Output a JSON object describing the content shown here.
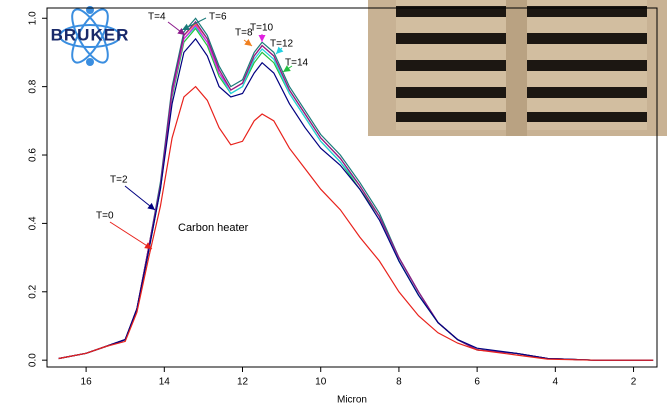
{
  "chart_data": {
    "type": "line",
    "logo": "BRUKER",
    "annotation": "Carbon heater",
    "x_label": "Micron",
    "x": [
      16.7,
      16,
      15.5,
      15,
      14.7,
      14.4,
      14.1,
      13.8,
      13.5,
      13.2,
      12.9,
      12.6,
      12.3,
      12,
      11.7,
      11.5,
      11.2,
      10.8,
      10.4,
      10,
      9.5,
      9,
      8.5,
      8,
      7.5,
      7,
      6.5,
      6,
      5,
      4.2,
      3,
      1.5
    ],
    "series": [
      {
        "name": "T=14",
        "color": "#22c040",
        "values": [
          0.005,
          0.02,
          0.04,
          0.06,
          0.15,
          0.32,
          0.5,
          0.77,
          0.93,
          0.97,
          0.92,
          0.83,
          0.78,
          0.8,
          0.87,
          0.9,
          0.87,
          0.78,
          0.71,
          0.64,
          0.58,
          0.5,
          0.42,
          0.29,
          0.19,
          0.11,
          0.06,
          0.03,
          0.02,
          0.005,
          0,
          0
        ]
      },
      {
        "name": "T=12",
        "color": "#22d0e0",
        "values": [
          0.005,
          0.02,
          0.04,
          0.06,
          0.15,
          0.32,
          0.5,
          0.78,
          0.94,
          0.975,
          0.93,
          0.84,
          0.78,
          0.8,
          0.88,
          0.91,
          0.88,
          0.78,
          0.71,
          0.64,
          0.58,
          0.51,
          0.42,
          0.29,
          0.19,
          0.11,
          0.06,
          0.03,
          0.02,
          0.005,
          0,
          0
        ]
      },
      {
        "name": "T=10",
        "color": "#e020e0",
        "values": [
          0.005,
          0.02,
          0.04,
          0.06,
          0.15,
          0.33,
          0.51,
          0.78,
          0.94,
          0.98,
          0.93,
          0.84,
          0.79,
          0.81,
          0.89,
          0.92,
          0.89,
          0.79,
          0.72,
          0.65,
          0.59,
          0.51,
          0.42,
          0.3,
          0.2,
          0.11,
          0.06,
          0.03,
          0.02,
          0.005,
          0,
          0
        ]
      },
      {
        "name": "T=8",
        "color": "#f08020",
        "values": [
          0.005,
          0.02,
          0.04,
          0.06,
          0.15,
          0.33,
          0.51,
          0.79,
          0.95,
          0.985,
          0.94,
          0.85,
          0.79,
          0.81,
          0.89,
          0.92,
          0.89,
          0.79,
          0.72,
          0.65,
          0.59,
          0.51,
          0.42,
          0.3,
          0.2,
          0.11,
          0.06,
          0.03,
          0.02,
          0.005,
          0,
          0
        ]
      },
      {
        "name": "T=6",
        "color": "#1a7a7a",
        "values": [
          0.005,
          0.02,
          0.04,
          0.06,
          0.15,
          0.33,
          0.52,
          0.8,
          0.96,
          1.0,
          0.95,
          0.86,
          0.8,
          0.82,
          0.9,
          0.93,
          0.9,
          0.8,
          0.73,
          0.66,
          0.6,
          0.52,
          0.43,
          0.3,
          0.2,
          0.11,
          0.06,
          0.03,
          0.02,
          0.005,
          0,
          0
        ]
      },
      {
        "name": "T=4",
        "color": "#8b1a8b",
        "values": [
          0.005,
          0.02,
          0.04,
          0.06,
          0.15,
          0.33,
          0.51,
          0.79,
          0.95,
          0.99,
          0.94,
          0.85,
          0.79,
          0.81,
          0.89,
          0.92,
          0.89,
          0.79,
          0.72,
          0.65,
          0.59,
          0.51,
          0.42,
          0.3,
          0.2,
          0.11,
          0.06,
          0.03,
          0.02,
          0.005,
          0,
          0
        ]
      },
      {
        "name": "T=2",
        "color": "#000080",
        "values": [
          0.005,
          0.02,
          0.04,
          0.06,
          0.15,
          0.32,
          0.5,
          0.75,
          0.9,
          0.94,
          0.89,
          0.8,
          0.77,
          0.78,
          0.84,
          0.87,
          0.84,
          0.75,
          0.68,
          0.62,
          0.57,
          0.5,
          0.41,
          0.29,
          0.19,
          0.11,
          0.06,
          0.035,
          0.02,
          0.005,
          0,
          0
        ]
      },
      {
        "name": "T=0",
        "color": "#e8221c",
        "values": [
          0.005,
          0.02,
          0.04,
          0.055,
          0.14,
          0.3,
          0.45,
          0.65,
          0.77,
          0.8,
          0.76,
          0.68,
          0.63,
          0.64,
          0.7,
          0.72,
          0.7,
          0.62,
          0.56,
          0.5,
          0.44,
          0.36,
          0.29,
          0.2,
          0.13,
          0.08,
          0.05,
          0.03,
          0.015,
          0.003,
          0,
          0
        ]
      }
    ],
    "xlim": [
      17,
      1.4
    ],
    "ylim": [
      -0.02,
      1.03
    ],
    "xticks": [
      16,
      14,
      12,
      10,
      8,
      6,
      4,
      2
    ],
    "yticks": [
      {
        "value": 0,
        "label": "0.0"
      },
      0.2,
      0.4,
      0.6,
      0.8,
      {
        "value": 1,
        "label": "1.0"
      }
    ]
  }
}
